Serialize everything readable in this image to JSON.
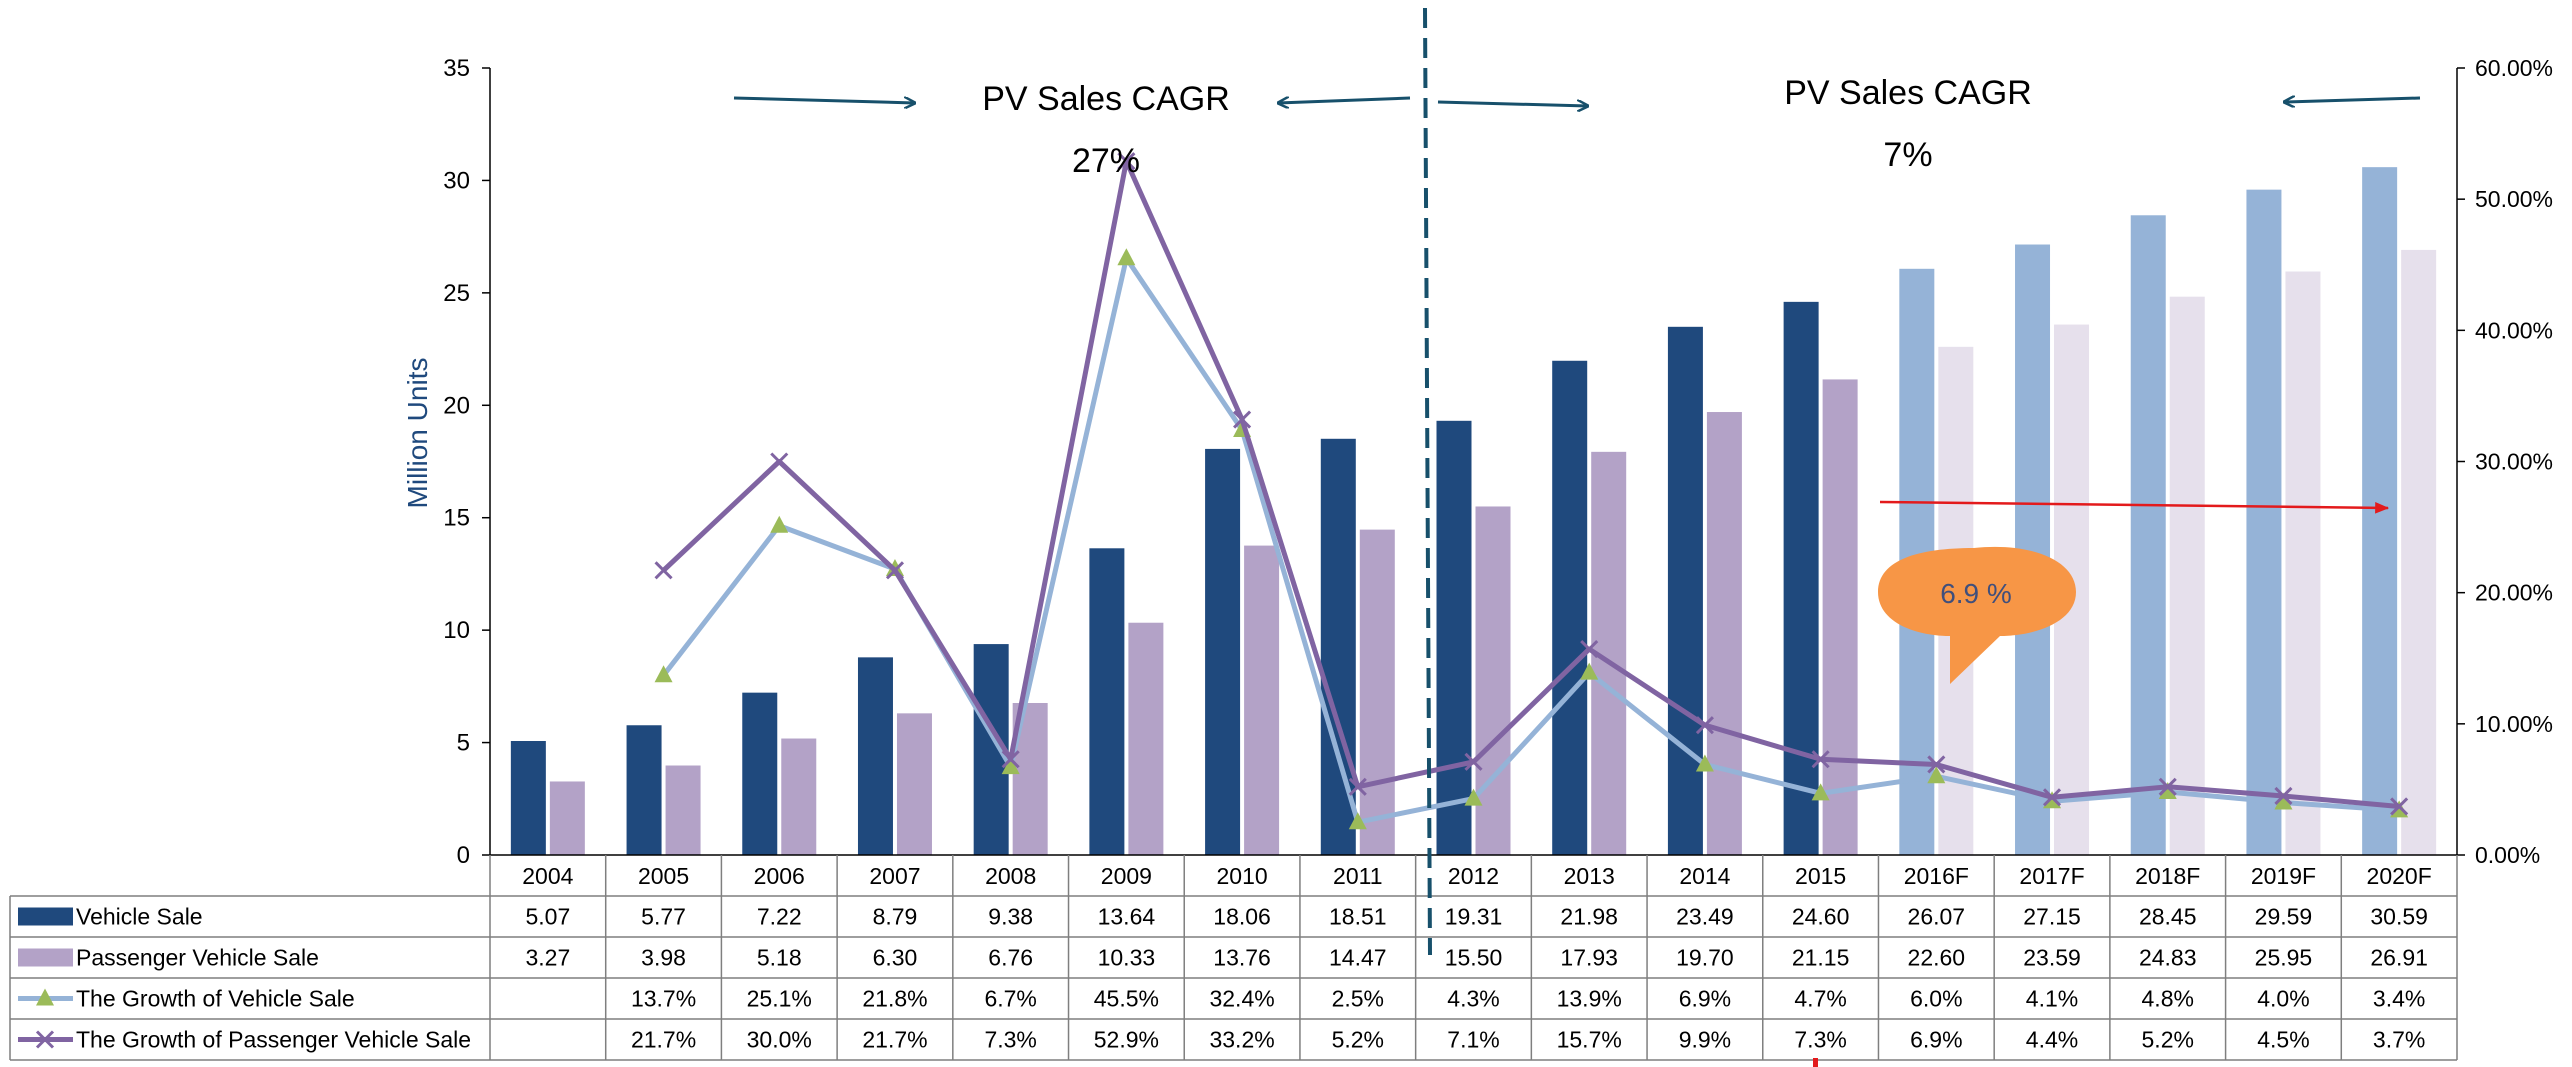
{
  "chart_data": {
    "type": "bar",
    "categories": [
      "2004",
      "2005",
      "2006",
      "2007",
      "2008",
      "2009",
      "2010",
      "2011",
      "2012",
      "2013",
      "2014",
      "2015",
      "2016F",
      "2017F",
      "2018F",
      "2019F",
      "2020F"
    ],
    "forecast_from_index": 12,
    "y_axis_left": {
      "label": "Million Units",
      "ylim": [
        0,
        35
      ],
      "ticks": [
        "0",
        "5",
        "10",
        "15",
        "20",
        "25",
        "30",
        "35"
      ]
    },
    "y_axis_right": {
      "ylim": [
        0,
        60
      ],
      "ticks": [
        "0.00%",
        "10.00%",
        "20.00%",
        "30.00%",
        "40.00%",
        "50.00%",
        "60.00%"
      ]
    },
    "series": [
      {
        "name": "Vehicle Sale",
        "kind": "bar",
        "axis": "left",
        "color": "#1f497d",
        "forecast_color": "#95b3d7",
        "values": [
          5.07,
          5.77,
          7.22,
          8.79,
          9.38,
          13.64,
          18.06,
          18.51,
          19.31,
          21.98,
          23.49,
          24.6,
          26.07,
          27.15,
          28.45,
          29.59,
          30.59
        ],
        "labels": [
          "5.07",
          "5.77",
          "7.22",
          "8.79",
          "9.38",
          "13.64",
          "18.06",
          "18.51",
          "19.31",
          "21.98",
          "23.49",
          "24.60",
          "26.07",
          "27.15",
          "28.45",
          "29.59",
          "30.59"
        ]
      },
      {
        "name": "Passenger Vehicle Sale",
        "kind": "bar",
        "axis": "left",
        "color": "#b3a2c7",
        "forecast_color": "#e6e0ec",
        "values": [
          3.27,
          3.98,
          5.18,
          6.3,
          6.76,
          10.33,
          13.76,
          14.47,
          15.5,
          17.93,
          19.7,
          21.15,
          22.6,
          23.59,
          24.83,
          25.95,
          26.91
        ],
        "labels": [
          "3.27",
          "3.98",
          "5.18",
          "6.30",
          "6.76",
          "10.33",
          "13.76",
          "14.47",
          "15.50",
          "17.93",
          "19.70",
          "21.15",
          "22.60",
          "23.59",
          "24.83",
          "25.95",
          "26.91"
        ]
      },
      {
        "name": "The Growth of Vehicle Sale",
        "kind": "line",
        "axis": "right",
        "marker": "triangle",
        "color": "#95b3d7",
        "marker_color": "#9bbb59",
        "values": [
          null,
          13.7,
          25.1,
          21.8,
          6.7,
          45.5,
          32.4,
          2.5,
          4.3,
          13.9,
          6.9,
          4.7,
          6.0,
          4.1,
          4.8,
          4.0,
          3.4
        ],
        "labels": [
          "",
          "13.7%",
          "25.1%",
          "21.8%",
          "6.7%",
          "45.5%",
          "32.4%",
          "2.5%",
          "4.3%",
          "13.9%",
          "6.9%",
          "4.7%",
          "6.0%",
          "4.1%",
          "4.8%",
          "4.0%",
          "3.4%"
        ]
      },
      {
        "name": "The Growth of Passenger Vehicle Sale",
        "kind": "line",
        "axis": "right",
        "marker": "x",
        "color": "#8064a2",
        "marker_color": "#8064a2",
        "values": [
          null,
          21.7,
          30.0,
          21.7,
          7.3,
          52.9,
          33.2,
          5.2,
          7.1,
          15.7,
          9.9,
          7.3,
          6.9,
          4.4,
          5.2,
          4.5,
          3.7
        ],
        "labels": [
          "",
          "21.7%",
          "30.0%",
          "21.7%",
          "7.3%",
          "52.9%",
          "33.2%",
          "5.2%",
          "7.1%",
          "15.7%",
          "9.9%",
          "7.3%",
          "6.9%",
          "4.4%",
          "5.2%",
          "4.5%",
          "3.7%"
        ]
      }
    ],
    "annotations": {
      "cagr_left": {
        "title": "PV Sales CAGR",
        "value": "27%"
      },
      "cagr_right": {
        "title": "PV Sales CAGR",
        "value": "7%"
      },
      "callout": {
        "text": "6.9 %",
        "color": "#f79646"
      },
      "arrow_color": "#17506b",
      "red_arrow_color": "#e31a1c",
      "divider_after_category": "2011"
    },
    "legend_placement": "data-table",
    "grid": false
  }
}
